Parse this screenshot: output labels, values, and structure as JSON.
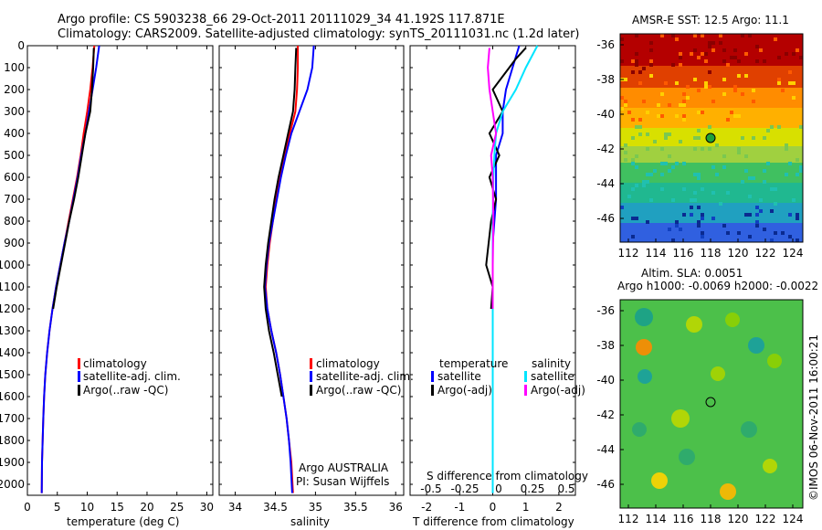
{
  "header": {
    "line1": "Argo profile: CS 5903238_66 29-Oct-2011 20111029_34 41.192S 117.871E",
    "line2": "Climatology: CARS2009. Satellite-adjusted climatology: synTS_20111031.nc (1.2d later)"
  },
  "colors": {
    "climatology": "#ff0000",
    "satellite": "#0000ff",
    "argo": "#000000",
    "sal_satellite": "#00e5ff",
    "sal_argo": "#ff00ff"
  },
  "panels": {
    "temp": {
      "xlabel": "temperature (deg C)",
      "xticks": [
        "0",
        "5",
        "10",
        "15",
        "20",
        "25",
        "30"
      ],
      "legend": [
        "climatology",
        "satellite-adj. clim.",
        "Argo(..raw -QC)"
      ]
    },
    "sal": {
      "xlabel": "salinity",
      "xticks": [
        "34",
        "34.5",
        "35",
        "35.5",
        "36"
      ],
      "legend": [
        "climatology",
        "satellite-adj. clim.",
        "Argo(..raw -QC)"
      ],
      "credit1": "Argo AUSTRALIA",
      "credit2": "PI: Susan Wijffels"
    },
    "diff": {
      "xlabel": "T difference from climatology",
      "top_label": "S difference from climatology",
      "xticks": [
        "-2",
        "-1",
        "0",
        "1",
        "2"
      ],
      "top_ticks": [
        "-0.5",
        "-0.25",
        "0",
        "0.25",
        "0.5"
      ],
      "legend_t_title": "temperature",
      "legend_s_title": "salinity",
      "legend_t": [
        "satellite",
        "Argo(-adj)"
      ],
      "legend_s": [
        "satellite",
        "Argo(-adj)"
      ]
    },
    "depth_ticks": [
      "0",
      "100",
      "200",
      "300",
      "400",
      "500",
      "600",
      "700",
      "800",
      "900",
      "1000",
      "1100",
      "1200",
      "1300",
      "1400",
      "1500",
      "1600",
      "1700",
      "1800",
      "1900",
      "2000"
    ]
  },
  "maps": {
    "sst_title": "AMSR-E SST: 12.5 Argo: 11.1",
    "sla_title1": "Altim. SLA: 0.0051",
    "sla_title2": "Argo h1000: -0.0069 h2000: -0.0022",
    "lat_ticks": [
      "-36",
      "-38",
      "-40",
      "-42",
      "-44",
      "-46"
    ],
    "lon_ticks": [
      "112",
      "114",
      "116",
      "118",
      "120",
      "122",
      "124"
    ]
  },
  "watermark": "©IMOS 06-Nov-2011 16:00:21",
  "chart_data": [
    {
      "type": "line",
      "title": "",
      "xlabel": "temperature (deg C)",
      "ylabel": "",
      "xlim": [
        0,
        31
      ],
      "ylim": [
        2050,
        0
      ],
      "series": [
        {
          "name": "climatology",
          "color": "#ff0000",
          "x": [
            11.2,
            10.9,
            10.5,
            10.0,
            9.4,
            8.9,
            8.3,
            7.6,
            6.9,
            6.2,
            5.5,
            4.8,
            4.2,
            3.7,
            3.3,
            3.0,
            2.8,
            2.65,
            2.55,
            2.45,
            2.4
          ],
          "y": [
            0,
            100,
            200,
            300,
            400,
            500,
            600,
            700,
            800,
            900,
            1000,
            1100,
            1200,
            1300,
            1400,
            1500,
            1600,
            1700,
            1800,
            1900,
            2040
          ]
        },
        {
          "name": "satellite-adj. clim.",
          "color": "#0000ff",
          "x": [
            12.0,
            11.5,
            10.9,
            10.3,
            9.7,
            9.0,
            8.4,
            7.7,
            7.0,
            6.2,
            5.5,
            4.8,
            4.2,
            3.7,
            3.3,
            3.0,
            2.8,
            2.65,
            2.55,
            2.45,
            2.4
          ],
          "y": [
            0,
            100,
            200,
            300,
            400,
            500,
            600,
            700,
            800,
            900,
            1000,
            1100,
            1200,
            1300,
            1400,
            1500,
            1600,
            1700,
            1800,
            1900,
            2040
          ]
        },
        {
          "name": "Argo(..raw -QC)",
          "color": "#000000",
          "x": [
            11.1,
            11.0,
            10.8,
            10.5,
            9.7,
            9.1,
            8.5,
            7.8,
            7.0,
            6.3,
            5.6,
            4.9,
            4.3
          ],
          "y": [
            10,
            100,
            200,
            300,
            400,
            500,
            600,
            700,
            800,
            900,
            1000,
            1100,
            1200
          ]
        }
      ]
    },
    {
      "type": "line",
      "title": "",
      "xlabel": "salinity",
      "ylabel": "",
      "xlim": [
        33.8,
        36.1
      ],
      "ylim": [
        2050,
        0
      ],
      "series": [
        {
          "name": "climatology",
          "color": "#ff0000",
          "x": [
            34.78,
            34.78,
            34.77,
            34.75,
            34.68,
            34.62,
            34.56,
            34.51,
            34.47,
            34.43,
            34.4,
            34.38,
            34.4,
            34.45,
            34.51,
            34.56,
            34.6,
            34.64,
            34.67,
            34.7,
            34.72
          ],
          "y": [
            0,
            100,
            200,
            300,
            400,
            500,
            600,
            700,
            800,
            900,
            1000,
            1100,
            1200,
            1300,
            1400,
            1500,
            1600,
            1700,
            1800,
            1900,
            2040
          ]
        },
        {
          "name": "satellite-adj. clim.",
          "color": "#0000ff",
          "x": [
            34.98,
            34.96,
            34.9,
            34.8,
            34.7,
            34.63,
            34.57,
            34.52,
            34.47,
            34.42,
            34.39,
            34.37,
            34.4,
            34.45,
            34.51,
            34.56,
            34.6,
            34.64,
            34.67,
            34.69,
            34.71
          ],
          "y": [
            0,
            100,
            200,
            300,
            400,
            500,
            600,
            700,
            800,
            900,
            1000,
            1100,
            1200,
            1300,
            1400,
            1500,
            1600,
            1700,
            1800,
            1900,
            2040
          ]
        },
        {
          "name": "Argo(..raw -QC)",
          "color": "#000000",
          "x": [
            34.76,
            34.75,
            34.74,
            34.72,
            34.66,
            34.6,
            34.54,
            34.49,
            34.45,
            34.41,
            34.38,
            34.36,
            34.38,
            34.42,
            34.48,
            34.53,
            34.58
          ],
          "y": [
            10,
            100,
            200,
            300,
            400,
            500,
            600,
            700,
            800,
            900,
            1000,
            1100,
            1200,
            1300,
            1400,
            1500,
            1600
          ]
        }
      ]
    },
    {
      "type": "line",
      "title": "",
      "xlabel": "T difference from climatology",
      "ylabel": "",
      "xlim": [
        -2.5,
        2.5
      ],
      "ylim": [
        2050,
        0
      ],
      "series": [
        {
          "name": "temperature satellite",
          "color": "#0000ff",
          "x": [
            0.8,
            0.6,
            0.4,
            0.3,
            0.3,
            0.1,
            0.1,
            0.1,
            0.05,
            0,
            0,
            0,
            0,
            0,
            0
          ],
          "y": [
            0,
            100,
            200,
            300,
            400,
            500,
            600,
            700,
            800,
            900,
            1000,
            1200,
            1500,
            1800,
            2040
          ]
        },
        {
          "name": "temperature Argo(-adj)",
          "color": "#000000",
          "x": [
            1.0,
            0.7,
            0.5,
            0.0,
            0.3,
            -0.1,
            0.2,
            -0.1,
            0.1,
            -0.05,
            -0.2,
            0.0,
            -0.05
          ],
          "y": [
            10,
            60,
            100,
            200,
            300,
            400,
            500,
            600,
            700,
            800,
            1000,
            1100,
            1200
          ]
        },
        {
          "name": "salinity satellite",
          "color": "#00e5ff",
          "x": [
            1.35,
            1.0,
            0.7,
            0.3,
            0.1,
            0.05,
            0.02,
            0,
            0,
            0,
            0,
            0
          ],
          "y": [
            0,
            100,
            200,
            300,
            400,
            500,
            600,
            800,
            1000,
            1400,
            1800,
            2040
          ]
        },
        {
          "name": "salinity Argo(-adj)",
          "color": "#ff00ff",
          "x": [
            -0.1,
            -0.15,
            -0.1,
            0.0,
            0.1,
            -0.05,
            0.0,
            0.02,
            0.0,
            0.0
          ],
          "y": [
            10,
            100,
            200,
            300,
            400,
            500,
            600,
            800,
            1000,
            1200
          ]
        }
      ]
    }
  ]
}
